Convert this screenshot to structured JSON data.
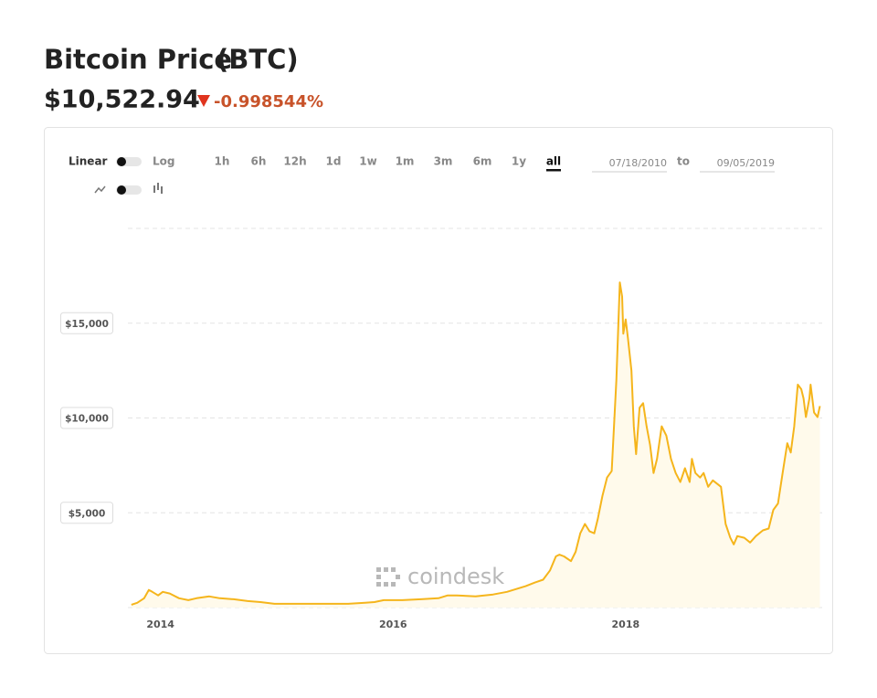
{
  "header": {
    "title": "Bitcoin Price",
    "ticker": "(BTC)",
    "price": "$10,522.94",
    "change": "-0.998544%"
  },
  "controls": {
    "scale_left": "Linear",
    "scale_right": "Log",
    "ranges": [
      "1h",
      "6h",
      "12h",
      "1d",
      "1w",
      "1m",
      "3m",
      "6m",
      "1y",
      "all"
    ],
    "active_range": "all",
    "date_from": "07/18/2010",
    "date_separator": "to",
    "date_to": "09/05/2019"
  },
  "watermark": "coindesk",
  "chart_data": {
    "type": "area",
    "color": "#f5b51c",
    "fill": "#fffaeb",
    "x": [
      2013.75,
      2013.8,
      2013.86,
      2013.9,
      2013.93,
      2013.98,
      2014.02,
      2014.08,
      2014.16,
      2014.24,
      2014.31,
      2014.42,
      2014.51,
      2014.63,
      2014.75,
      2014.86,
      2014.98,
      2015.14,
      2015.29,
      2015.45,
      2015.61,
      2015.76,
      2015.84,
      2015.92,
      2016.08,
      2016.24,
      2016.39,
      2016.47,
      2016.55,
      2016.71,
      2016.86,
      2016.98,
      2017.06,
      2017.14,
      2017.22,
      2017.29,
      2017.35,
      2017.4,
      2017.43,
      2017.47,
      2017.53,
      2017.57,
      2017.61,
      2017.65,
      2017.69,
      2017.73,
      2017.76,
      2017.8,
      2017.84,
      2017.88,
      2017.92,
      2017.95,
      2017.97,
      2017.98,
      2018.0,
      2018.02,
      2018.05,
      2018.07,
      2018.09,
      2018.12,
      2018.15,
      2018.18,
      2018.21,
      2018.24,
      2018.27,
      2018.31,
      2018.35,
      2018.39,
      2018.43,
      2018.47,
      2018.51,
      2018.55,
      2018.57,
      2018.6,
      2018.64,
      2018.67,
      2018.71,
      2018.75,
      2018.82,
      2018.86,
      2018.9,
      2018.93,
      2018.96,
      2019.02,
      2019.07,
      2019.12,
      2019.18,
      2019.23,
      2019.27,
      2019.31,
      2019.35,
      2019.39,
      2019.42,
      2019.45,
      2019.48,
      2019.51,
      2019.53,
      2019.55,
      2019.58,
      2019.59,
      2019.62,
      2019.65,
      2019.67
    ],
    "values": [
      150,
      250,
      490,
      930,
      830,
      640,
      830,
      740,
      490,
      390,
      490,
      590,
      490,
      440,
      340,
      290,
      200,
      200,
      200,
      200,
      200,
      250,
      290,
      390,
      390,
      440,
      490,
      640,
      640,
      590,
      690,
      830,
      980,
      1130,
      1320,
      1470,
      1960,
      2700,
      2790,
      2700,
      2450,
      2940,
      3920,
      4410,
      4020,
      3920,
      4660,
      5880,
      6860,
      7200,
      12000,
      17150,
      16400,
      14450,
      15200,
      14200,
      12500,
      9560,
      8090,
      10540,
      10780,
      9560,
      8580,
      7100,
      7840,
      9560,
      9070,
      7840,
      7100,
      6620,
      7350,
      6620,
      7840,
      7100,
      6860,
      7100,
      6370,
      6710,
      6370,
      4410,
      3680,
      3330,
      3770,
      3680,
      3430,
      3770,
      4070,
      4170,
      5150,
      5490,
      7100,
      8670,
      8180,
      9560,
      11760,
      11520,
      11030,
      10050,
      11030,
      11760,
      10290,
      10050,
      10630
    ],
    "xlim": [
      2013.72,
      2019.69
    ],
    "xticks": [
      2014,
      2016,
      2018
    ],
    "ylim": [
      0,
      20000
    ],
    "yticks": [
      {
        "value": 5000,
        "label": "$5,000"
      },
      {
        "value": 10000,
        "label": "$10,000"
      },
      {
        "value": 15000,
        "label": "$15,000"
      }
    ],
    "grid": true
  }
}
